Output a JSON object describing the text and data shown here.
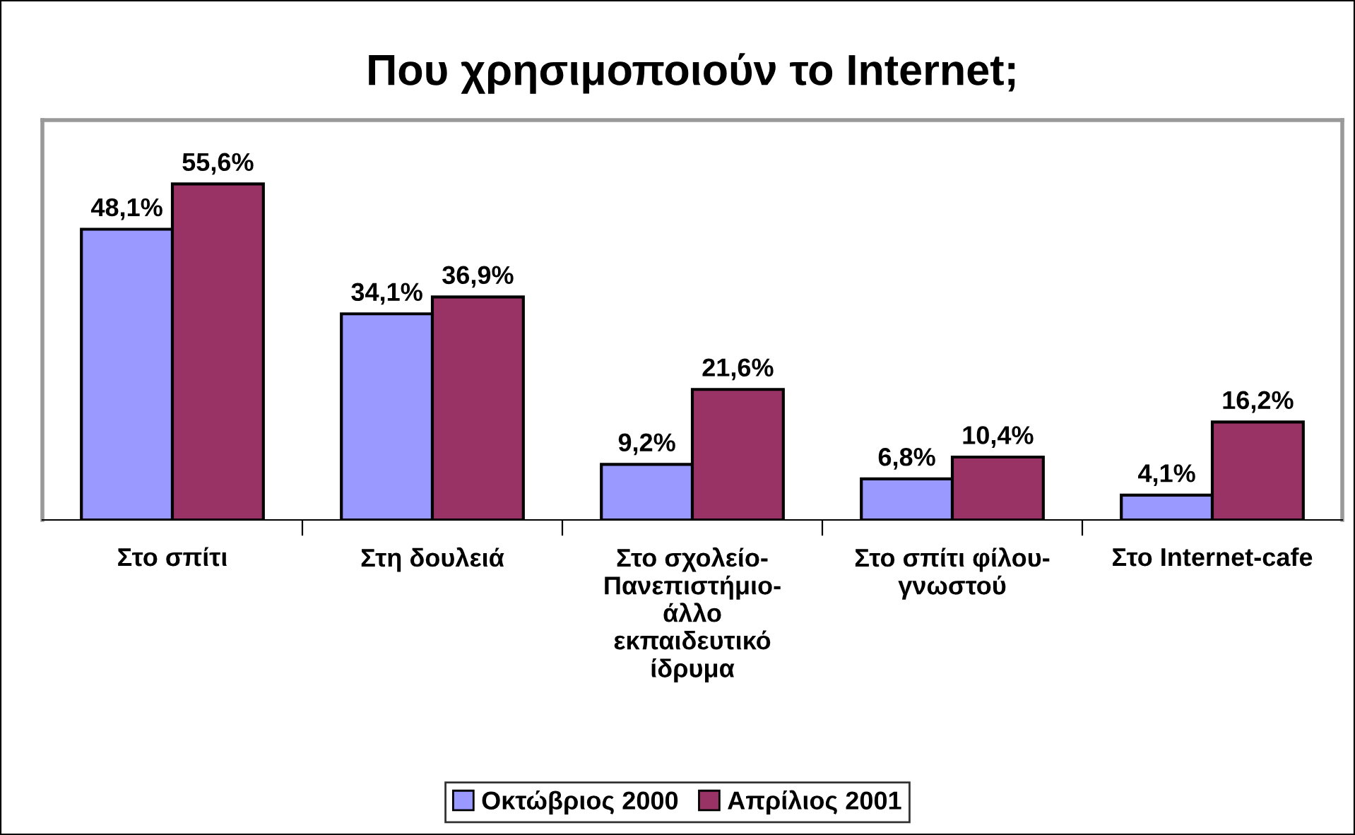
{
  "chart_data": {
    "type": "bar",
    "title": "Που χρησιμοποιούν το Internet;",
    "categories": [
      "Στο σπίτι",
      "Στη δουλειά",
      "Στο σχολείο-\nΠανεπιστήμιο-\nάλλο\nεκπαιδευτικό\nίδρυμα",
      "Στο σπίτι φίλου-\nγνωστού",
      "Στο Internet-cafe"
    ],
    "series": [
      {
        "name": "Οκτώβριος 2000",
        "color": "#9999ff",
        "values": [
          48.1,
          34.1,
          9.2,
          6.8,
          4.1
        ],
        "value_labels": [
          "48,1%",
          "34,1%",
          "9,2%",
          "6,8%",
          "4,1%"
        ]
      },
      {
        "name": "Απρίλιος 2001",
        "color": "#993366",
        "values": [
          55.6,
          36.9,
          21.6,
          10.4,
          16.2
        ],
        "value_labels": [
          "55,6%",
          "36,9%",
          "21,6%",
          "10,4%",
          "16,2%"
        ]
      }
    ],
    "tick_labels": "x",
    "legend": "bottom",
    "grid": false
  }
}
